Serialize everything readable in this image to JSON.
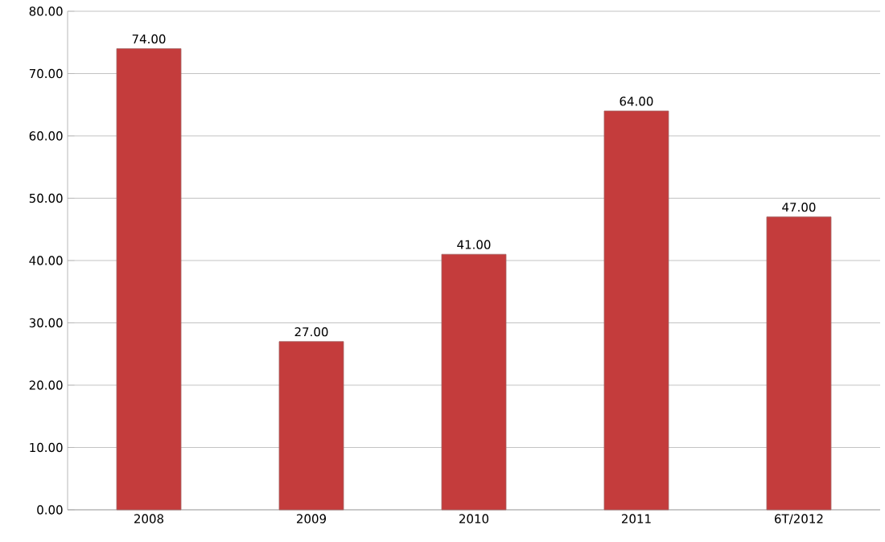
{
  "chart_data": {
    "type": "bar",
    "categories": [
      "2008",
      "2009",
      "2010",
      "2011",
      "6T/2012"
    ],
    "values": [
      74,
      27,
      41,
      64,
      47
    ],
    "value_labels": [
      "74.00",
      "27.00",
      "41.00",
      "64.00",
      "47.00"
    ],
    "color": "#c43c3c",
    "ylim": [
      0,
      80
    ],
    "yticks": [
      {
        "value": 0,
        "label": "0.00"
      },
      {
        "value": 10,
        "label": "10.00"
      },
      {
        "value": 20,
        "label": "20.00"
      },
      {
        "value": 30,
        "label": "30.00"
      },
      {
        "value": 40,
        "label": "40.00"
      },
      {
        "value": 50,
        "label": "50.00"
      },
      {
        "value": 60,
        "label": "60.00"
      },
      {
        "value": 70,
        "label": "70.00"
      },
      {
        "value": 80,
        "label": "80.00"
      }
    ],
    "grid": "y"
  }
}
